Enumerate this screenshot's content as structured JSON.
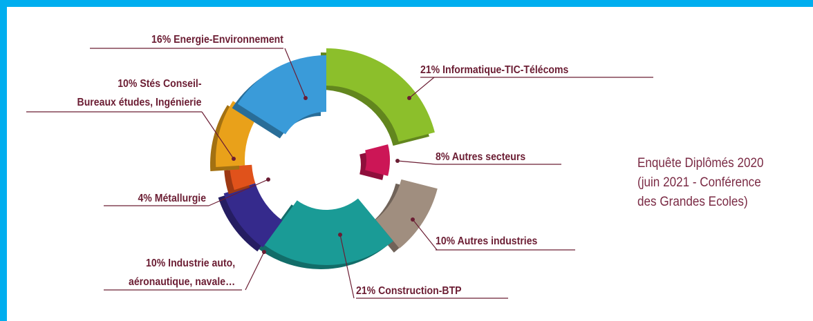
{
  "chart_data": {
    "type": "donut",
    "categories": [
      "Informatique-TIC-Télécoms",
      "Autres secteurs",
      "Autres industries",
      "Construction-BTP",
      "Industrie auto,\naéronautique, navale…",
      "Métallurgie",
      "Stés Conseil-\nBureaux études, Ingénierie",
      "Energie-Environnement"
    ],
    "values": [
      21,
      8,
      10,
      21,
      10,
      4,
      10,
      16
    ],
    "value_labels": [
      "21%",
      "8%",
      "10%",
      "21%",
      "10%",
      "4%",
      "10%",
      "16%"
    ],
    "colors": [
      "#8cbf2b",
      "#cc1656",
      "#a08e7f",
      "#1a9b96",
      "#352a8c",
      "#e0521b",
      "#e9a11a",
      "#3a9bd9"
    ],
    "note": "Enquête Diplômés 2020\n(juin 2021 - Conférence\ndes Grandes Ecoles)"
  }
}
